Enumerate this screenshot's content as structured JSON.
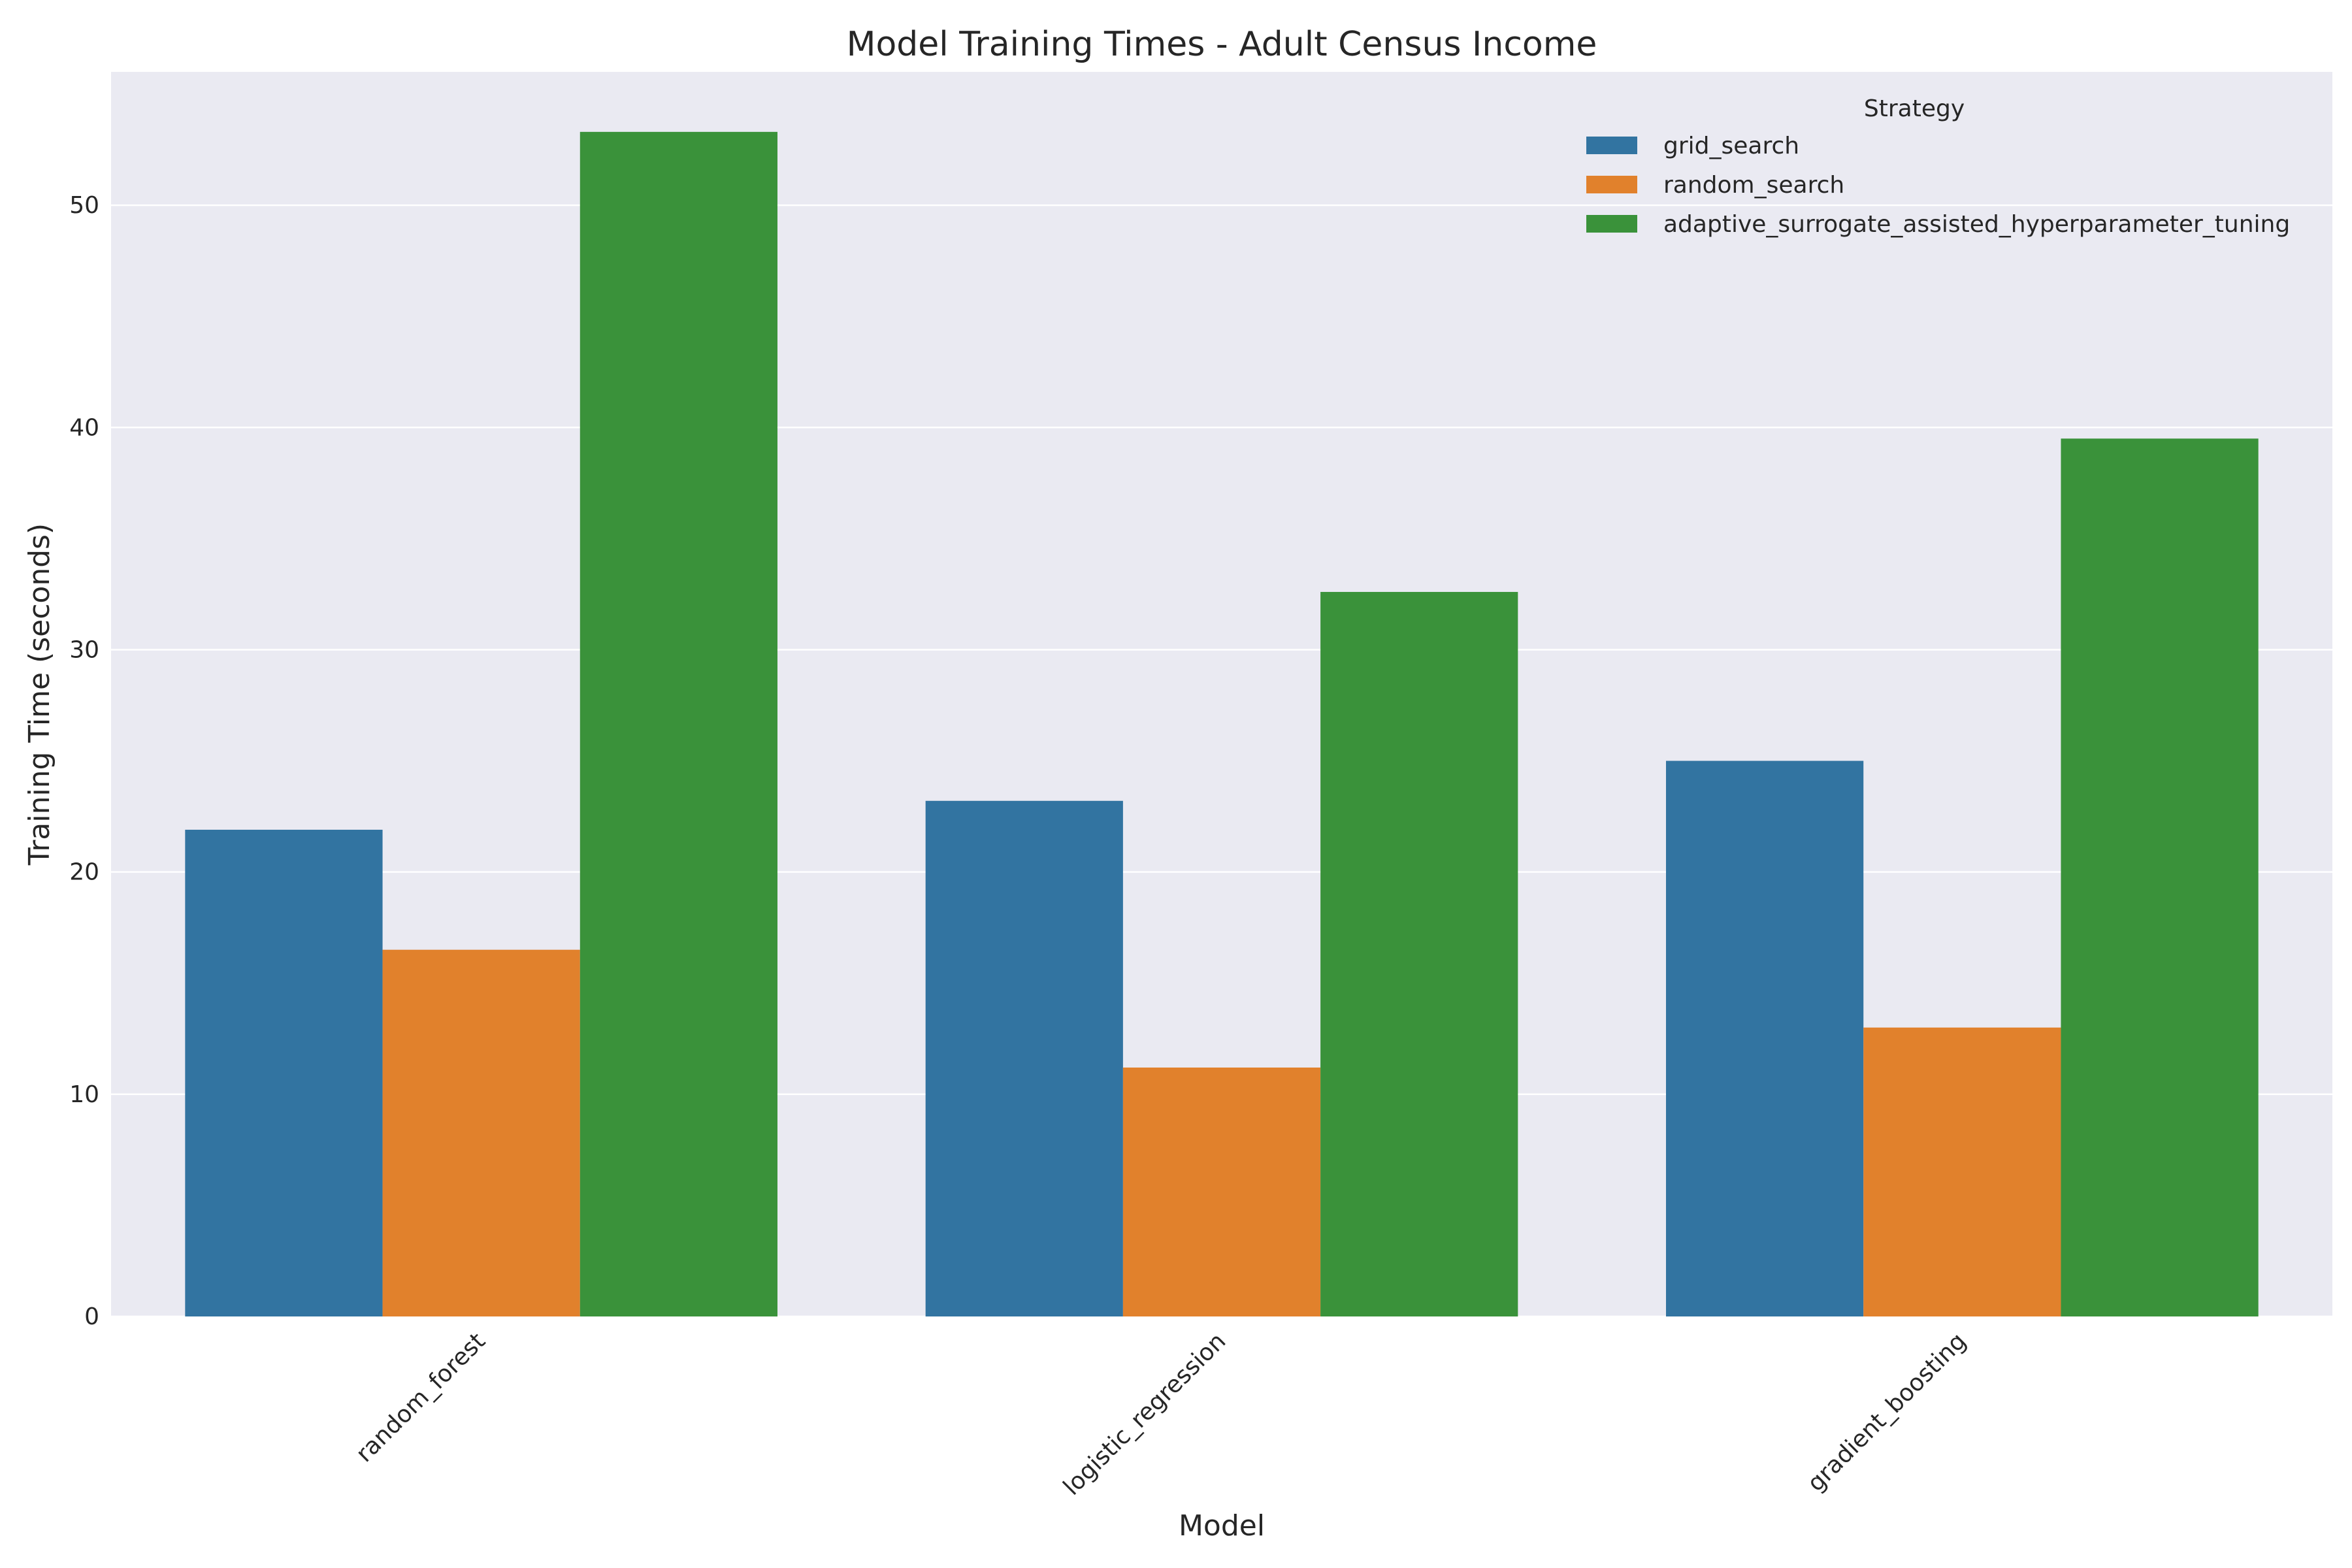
{
  "chart_data": {
    "type": "bar",
    "title": "Model Training Times - Adult Census Income",
    "xlabel": "Model",
    "ylabel": "Training Time (seconds)",
    "categories": [
      "random_forest",
      "logistic_regression",
      "gradient_boosting"
    ],
    "series": [
      {
        "name": "grid_search",
        "color": "#3274a1",
        "values": [
          21.9,
          23.2,
          25.0
        ]
      },
      {
        "name": "random_search",
        "color": "#e1812c",
        "values": [
          16.5,
          11.2,
          13.0
        ]
      },
      {
        "name": "adaptive_surrogate_assisted_hyperparameter_tuning",
        "color": "#3a923a",
        "values": [
          53.3,
          32.6,
          39.5
        ]
      }
    ],
    "ylim": [
      0,
      56
    ],
    "yticks": [
      0,
      10,
      20,
      30,
      40,
      50
    ],
    "grid": true,
    "legend": {
      "title": "Strategy",
      "placement": "top-right"
    },
    "colors": {
      "plot_background": "#eaeaf2",
      "grid": "#ffffff"
    }
  }
}
